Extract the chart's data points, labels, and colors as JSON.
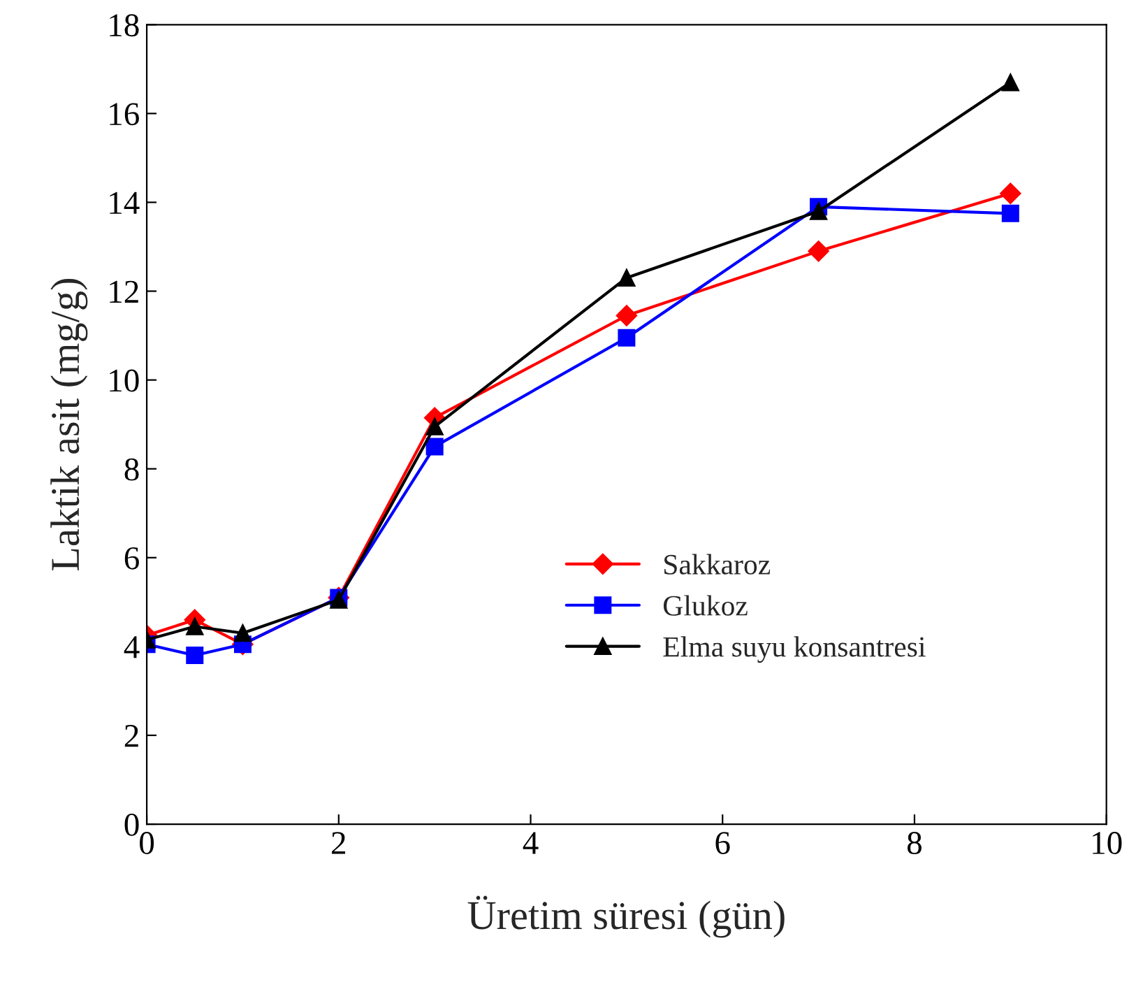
{
  "chart_data": {
    "type": "line",
    "xlabel": "Üretim süresi (gün)",
    "ylabel": "Laktik asit (mg/g)",
    "x": [
      0,
      0.5,
      1,
      2,
      3,
      5,
      7,
      9
    ],
    "series": [
      {
        "name": "Sakkaroz",
        "color": "#ff0000",
        "marker": "diamond",
        "values": [
          4.25,
          4.6,
          4.05,
          5.1,
          9.15,
          11.45,
          12.9,
          14.2
        ]
      },
      {
        "name": "Glukoz",
        "color": "#0000ff",
        "marker": "square",
        "values": [
          4.05,
          3.8,
          4.05,
          5.1,
          8.5,
          10.95,
          13.9,
          13.75
        ]
      },
      {
        "name": "Elma suyu konsantresi",
        "color": "#000000",
        "marker": "triangle",
        "values": [
          4.15,
          4.45,
          4.3,
          5.05,
          8.95,
          12.3,
          13.8,
          16.7
        ]
      }
    ],
    "xlim": [
      0,
      10
    ],
    "xticks": [
      0,
      2,
      4,
      6,
      8,
      10
    ],
    "ylim": [
      0,
      18
    ],
    "yticks": [
      0,
      2,
      4,
      6,
      8,
      10,
      12,
      14,
      16,
      18
    ],
    "grid": false,
    "legend": "center right",
    "line_style": "solid"
  }
}
